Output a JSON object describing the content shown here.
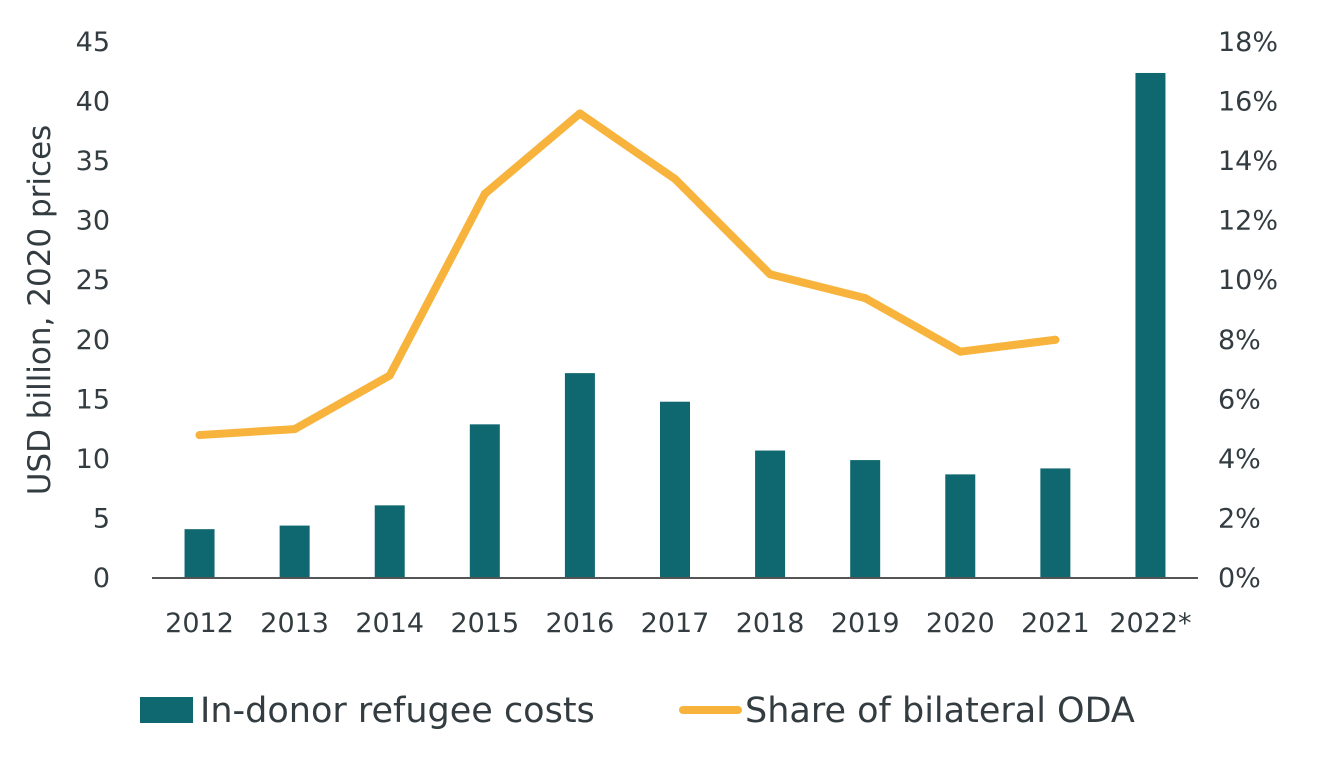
{
  "chart_data": {
    "type": "bar",
    "categories": [
      "2012",
      "2013",
      "2014",
      "2015",
      "2016",
      "2017",
      "2018",
      "2019",
      "2020",
      "2021",
      "2022*"
    ],
    "series": [
      {
        "name": "In-donor refugee costs",
        "type": "bar",
        "axis": "left",
        "values": [
          4.1,
          4.4,
          6.1,
          12.9,
          17.2,
          14.8,
          10.7,
          9.9,
          8.7,
          9.2,
          42.4
        ]
      },
      {
        "name": "Share of bilateral ODA",
        "type": "line",
        "axis": "right",
        "values": [
          4.8,
          5.0,
          6.8,
          12.9,
          15.6,
          13.4,
          10.2,
          9.4,
          7.6,
          8.0,
          null
        ]
      }
    ],
    "ylabel": "USD billion, 2020 prices",
    "ylim": [
      0,
      45
    ],
    "y_ticks": [
      0,
      5,
      10,
      15,
      20,
      25,
      30,
      35,
      40,
      45
    ],
    "y2lim": [
      0,
      18
    ],
    "y2_ticks": [
      "0%",
      "2%",
      "4%",
      "6%",
      "8%",
      "10%",
      "12%",
      "14%",
      "16%",
      "18%"
    ],
    "xlabel": "",
    "title": "",
    "grid": false,
    "legend": {
      "placement": "bottom",
      "entries": [
        "In-donor refugee costs",
        "Share of bilateral ODA"
      ]
    },
    "colors": {
      "bar": "#0f6870",
      "line": "#f7b33b",
      "text": "#333c40",
      "axis": "#555555"
    }
  }
}
